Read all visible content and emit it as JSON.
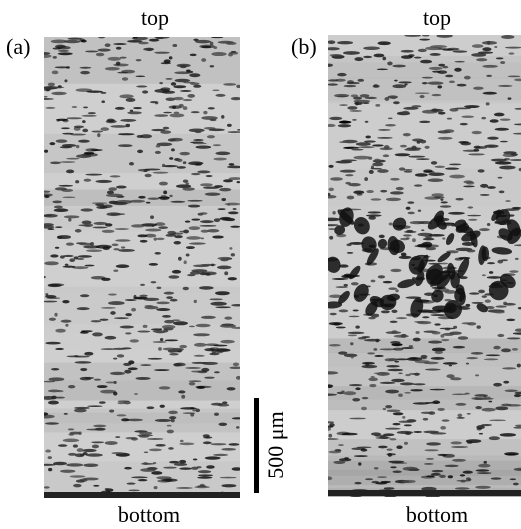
{
  "panels": [
    {
      "label": "(a)",
      "top": "top",
      "bottom": "bottom"
    },
    {
      "label": "(b)",
      "top": "top",
      "bottom": "bottom"
    }
  ],
  "scale_bar": {
    "label": "500 μm"
  }
}
